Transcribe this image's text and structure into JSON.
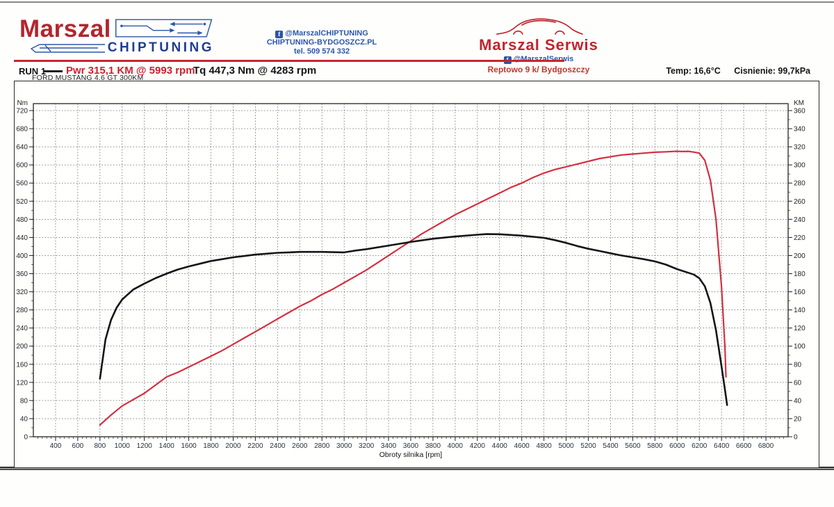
{
  "header": {
    "logo": {
      "brand": "Marszal",
      "sub": "CHIPTUNING"
    },
    "contact": {
      "fb": "@MarszalCHIPTUNING",
      "site": "CHIPTUNING-BYDGOSZCZ.PL",
      "tel": "tel. 509 574 332"
    },
    "serwis": {
      "name": "Marszal Serwis",
      "fb": "@MarszalSerwis",
      "address": "Reptowo 9 k/ Bydgoszczy"
    }
  },
  "run_info": {
    "run_label": "RUN 1",
    "power_result": "Pwr  315,1 KM @ 5993 rpm",
    "torque_result": "Tq 447,3 Nm @ 4283 rpm",
    "temp": "Temp: 16,6°C",
    "pressure": "Cisnienie: 99,7kPa",
    "vehicle": "FORD MUSTANG 4.6 GT 300KM"
  },
  "colors": {
    "accent_red": "#c9252e",
    "accent_blue": "#2b57a8",
    "curve_power": "#d2303f",
    "curve_torque": "#151515",
    "grid": "#5a5a5a"
  },
  "chart_data": {
    "type": "line",
    "xlabel": "Obroty silnika [rpm]",
    "x_range": [
      200,
      7000
    ],
    "x_ticks": [
      400,
      600,
      800,
      1000,
      1200,
      1400,
      1600,
      1800,
      2000,
      2200,
      2400,
      2600,
      2800,
      3000,
      3200,
      3400,
      3600,
      3800,
      4000,
      4200,
      4400,
      4600,
      4800,
      5000,
      5200,
      5400,
      5600,
      5800,
      6000,
      6200,
      6400,
      6600,
      6800
    ],
    "x_minor_step": 40,
    "left_axis": {
      "label": "Nm",
      "range": [
        0,
        720
      ],
      "ticks": [
        0,
        40,
        80,
        120,
        160,
        200,
        240,
        280,
        320,
        360,
        400,
        440,
        480,
        520,
        560,
        600,
        640,
        680,
        720
      ],
      "minor_step": 20
    },
    "right_axis": {
      "label": "KM",
      "range": [
        0,
        360
      ],
      "ticks": [
        0,
        20,
        40,
        60,
        80,
        100,
        120,
        140,
        160,
        180,
        200,
        220,
        240,
        260,
        280,
        300,
        320,
        340,
        360
      ],
      "minor_step": 10
    },
    "grid": true,
    "series": [
      {
        "name": "Power",
        "unit": "KM",
        "axis": "right",
        "color": "#d2303f",
        "width": 2.2,
        "peak": "315,1 KM @ 5993 rpm",
        "points": [
          [
            800,
            13
          ],
          [
            900,
            24
          ],
          [
            1000,
            34
          ],
          [
            1100,
            41
          ],
          [
            1200,
            48
          ],
          [
            1300,
            57
          ],
          [
            1400,
            66
          ],
          [
            1500,
            71
          ],
          [
            1600,
            77
          ],
          [
            1700,
            83
          ],
          [
            1800,
            89
          ],
          [
            1900,
            95
          ],
          [
            2000,
            102
          ],
          [
            2100,
            109
          ],
          [
            2200,
            116
          ],
          [
            2300,
            123
          ],
          [
            2400,
            130
          ],
          [
            2500,
            137
          ],
          [
            2600,
            144
          ],
          [
            2700,
            150
          ],
          [
            2800,
            157
          ],
          [
            2900,
            163
          ],
          [
            3000,
            170
          ],
          [
            3100,
            177
          ],
          [
            3200,
            184
          ],
          [
            3300,
            192
          ],
          [
            3400,
            200
          ],
          [
            3500,
            208
          ],
          [
            3600,
            216
          ],
          [
            3700,
            224
          ],
          [
            3800,
            231
          ],
          [
            3900,
            238
          ],
          [
            4000,
            245
          ],
          [
            4100,
            251
          ],
          [
            4200,
            257
          ],
          [
            4300,
            263
          ],
          [
            4400,
            269
          ],
          [
            4500,
            275
          ],
          [
            4600,
            280
          ],
          [
            4700,
            286
          ],
          [
            4800,
            291
          ],
          [
            4900,
            295
          ],
          [
            5000,
            298
          ],
          [
            5100,
            301
          ],
          [
            5200,
            304
          ],
          [
            5300,
            307
          ],
          [
            5400,
            309
          ],
          [
            5500,
            311
          ],
          [
            5600,
            312
          ],
          [
            5700,
            313
          ],
          [
            5800,
            314
          ],
          [
            5900,
            314.5
          ],
          [
            5993,
            315.1
          ],
          [
            6050,
            314.8
          ],
          [
            6100,
            315
          ],
          [
            6150,
            314.2
          ],
          [
            6200,
            313
          ],
          [
            6250,
            305
          ],
          [
            6300,
            283
          ],
          [
            6350,
            240
          ],
          [
            6400,
            165
          ],
          [
            6430,
            100
          ],
          [
            6440,
            66
          ]
        ]
      },
      {
        "name": "Torque",
        "unit": "Nm",
        "axis": "left",
        "color": "#151515",
        "width": 2.6,
        "peak": "447,3 Nm @ 4283 rpm",
        "points": [
          [
            800,
            128
          ],
          [
            850,
            215
          ],
          [
            900,
            258
          ],
          [
            950,
            285
          ],
          [
            1000,
            303
          ],
          [
            1100,
            325
          ],
          [
            1200,
            338
          ],
          [
            1300,
            350
          ],
          [
            1400,
            360
          ],
          [
            1500,
            369
          ],
          [
            1600,
            376
          ],
          [
            1700,
            382
          ],
          [
            1800,
            388
          ],
          [
            1900,
            392
          ],
          [
            2000,
            396
          ],
          [
            2100,
            399
          ],
          [
            2200,
            402
          ],
          [
            2300,
            404
          ],
          [
            2400,
            406
          ],
          [
            2500,
            407
          ],
          [
            2600,
            408
          ],
          [
            2800,
            408
          ],
          [
            3000,
            407
          ],
          [
            3100,
            411
          ],
          [
            3200,
            414
          ],
          [
            3400,
            422
          ],
          [
            3600,
            430
          ],
          [
            3800,
            437
          ],
          [
            4000,
            442
          ],
          [
            4200,
            446
          ],
          [
            4283,
            447.3
          ],
          [
            4400,
            447
          ],
          [
            4600,
            444
          ],
          [
            4800,
            439
          ],
          [
            4900,
            434
          ],
          [
            5000,
            428
          ],
          [
            5100,
            421
          ],
          [
            5200,
            415
          ],
          [
            5300,
            410
          ],
          [
            5400,
            405
          ],
          [
            5500,
            400
          ],
          [
            5600,
            396
          ],
          [
            5700,
            392
          ],
          [
            5800,
            387
          ],
          [
            5900,
            380
          ],
          [
            6000,
            370
          ],
          [
            6100,
            362
          ],
          [
            6150,
            358
          ],
          [
            6200,
            350
          ],
          [
            6250,
            332
          ],
          [
            6300,
            295
          ],
          [
            6350,
            235
          ],
          [
            6400,
            155
          ],
          [
            6430,
            105
          ],
          [
            6450,
            70
          ]
        ]
      }
    ]
  }
}
